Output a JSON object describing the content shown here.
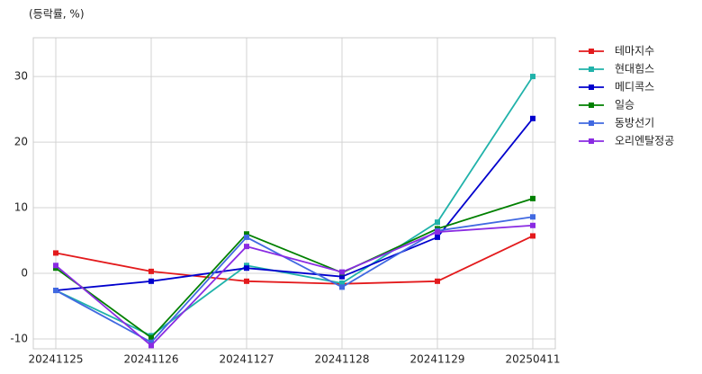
{
  "chart_data": {
    "type": "line",
    "subtitle": "(등락률, %)",
    "categories": [
      "20241125",
      "20241126",
      "20241127",
      "20241128",
      "20241129",
      "20250411"
    ],
    "series": [
      {
        "name": "테마지수",
        "color": "#e31a1c",
        "values": [
          3.1,
          0.3,
          -1.2,
          -1.6,
          -1.2,
          5.7
        ]
      },
      {
        "name": "현대힘스",
        "color": "#20b2aa",
        "values": [
          -2.6,
          -9.5,
          1.2,
          -1.5,
          7.8,
          30.0
        ]
      },
      {
        "name": "메디콕스",
        "color": "#0000cd",
        "values": [
          -2.6,
          -1.2,
          0.8,
          -0.5,
          5.5,
          23.6
        ]
      },
      {
        "name": "일승",
        "color": "#008000",
        "values": [
          0.8,
          -9.8,
          6.0,
          0.1,
          6.8,
          11.4
        ]
      },
      {
        "name": "동방선기",
        "color": "#4169e1",
        "values": [
          -2.6,
          -10.5,
          5.5,
          -2.1,
          6.5,
          8.6
        ]
      },
      {
        "name": "오리엔탈정공",
        "color": "#8a2be2",
        "values": [
          1.2,
          -11.0,
          4.1,
          0.2,
          6.3,
          7.3
        ]
      }
    ],
    "ylim": [
      -11.5,
      35.9
    ],
    "yticks": [
      -10,
      0,
      10,
      20,
      30
    ],
    "grid": true,
    "legend": "right"
  }
}
